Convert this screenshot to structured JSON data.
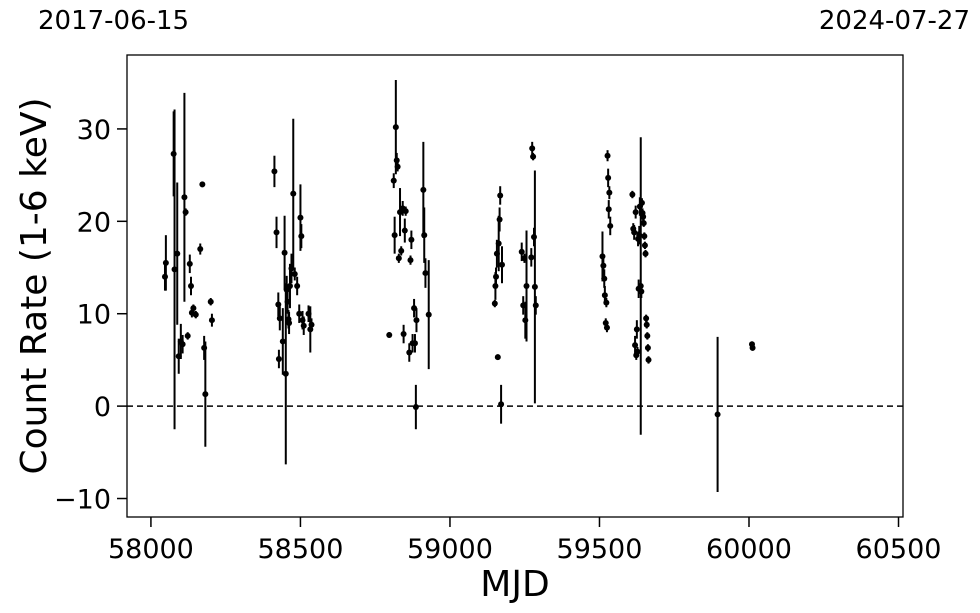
{
  "top_dates": {
    "left": "2017-06-15",
    "right": "2024-07-27"
  },
  "chart_data": {
    "type": "scatter",
    "title": "",
    "xlabel": "MJD",
    "ylabel": "Count Rate (1-6 keV)",
    "xlim": [
      57920,
      60515
    ],
    "ylim": [
      -12,
      38
    ],
    "xticks": [
      58000,
      58500,
      59000,
      59500,
      60000,
      60500
    ],
    "xtick_labels": [
      "58000",
      "58500",
      "59000",
      "59500",
      "60000",
      "60500"
    ],
    "yticks": [
      -10,
      0,
      10,
      20,
      30
    ],
    "ytick_labels": [
      "−10",
      "0",
      "10",
      "20",
      "30"
    ],
    "reference_line": {
      "y": 0,
      "style": "dashed",
      "color": "#000000"
    },
    "marker_color": "#000000",
    "grid": false,
    "legend": "none",
    "points": [
      {
        "x": 58047,
        "y": 14.0,
        "err": 1.5
      },
      {
        "x": 58050,
        "y": 15.5,
        "err": 3.0
      },
      {
        "x": 58076,
        "y": 27.3,
        "err": 4.6
      },
      {
        "x": 58079,
        "y": 14.8,
        "err": 17.3
      },
      {
        "x": 58088,
        "y": 16.5,
        "err": 7.7
      },
      {
        "x": 58093,
        "y": 5.4,
        "err": 1.9
      },
      {
        "x": 58100,
        "y": 7.0,
        "err": 1.9
      },
      {
        "x": 58106,
        "y": 6.7,
        "err": 1.0
      },
      {
        "x": 58112,
        "y": 22.6,
        "err": 11.3
      },
      {
        "x": 58116,
        "y": 21.0,
        "err": 0.4
      },
      {
        "x": 58123,
        "y": 7.6,
        "err": 0.4
      },
      {
        "x": 58130,
        "y": 15.4,
        "err": 1.0
      },
      {
        "x": 58134,
        "y": 13.0,
        "err": 1.0
      },
      {
        "x": 58137,
        "y": 10.1,
        "err": 0.5
      },
      {
        "x": 58142,
        "y": 10.6,
        "err": 0.4
      },
      {
        "x": 58150,
        "y": 9.9,
        "err": 0.4
      },
      {
        "x": 58165,
        "y": 17.0,
        "err": 0.6
      },
      {
        "x": 58172,
        "y": 24.0,
        "err": 0.3
      },
      {
        "x": 58178,
        "y": 6.3,
        "err": 1.3
      },
      {
        "x": 58182,
        "y": 1.3,
        "err": 5.7
      },
      {
        "x": 58200,
        "y": 11.3,
        "err": 0.4
      },
      {
        "x": 58204,
        "y": 9.3,
        "err": 0.7
      },
      {
        "x": 58413,
        "y": 25.4,
        "err": 1.7
      },
      {
        "x": 58420,
        "y": 18.8,
        "err": 1.7
      },
      {
        "x": 58426,
        "y": 11.0,
        "err": 1.3
      },
      {
        "x": 58428,
        "y": 5.1,
        "err": 1.0
      },
      {
        "x": 58431,
        "y": 9.5,
        "err": 1.3
      },
      {
        "x": 58441,
        "y": 7.0,
        "err": 3.6
      },
      {
        "x": 58447,
        "y": 16.6,
        "err": 4.0
      },
      {
        "x": 58451,
        "y": 3.5,
        "err": 9.8
      },
      {
        "x": 58454,
        "y": 12.6,
        "err": 1.5
      },
      {
        "x": 58457,
        "y": 11.3,
        "err": 1.3
      },
      {
        "x": 58460,
        "y": 9.4,
        "err": 1.0
      },
      {
        "x": 58462,
        "y": 9.0,
        "err": 1.2
      },
      {
        "x": 58465,
        "y": 13.0,
        "err": 2.4
      },
      {
        "x": 58470,
        "y": 14.9,
        "err": 1.6
      },
      {
        "x": 58476,
        "y": 23.0,
        "err": 8.1
      },
      {
        "x": 58481,
        "y": 14.3,
        "err": 0.7
      },
      {
        "x": 58489,
        "y": 13.0,
        "err": 1.0
      },
      {
        "x": 58496,
        "y": 10.0,
        "err": 1.0
      },
      {
        "x": 58500,
        "y": 20.4,
        "err": 3.6
      },
      {
        "x": 58503,
        "y": 18.4,
        "err": 1.3
      },
      {
        "x": 58507,
        "y": 9.3,
        "err": 1.0
      },
      {
        "x": 58511,
        "y": 8.7,
        "err": 1.0
      },
      {
        "x": 58527,
        "y": 10.0,
        "err": 0.9
      },
      {
        "x": 58533,
        "y": 8.3,
        "err": 2.5
      },
      {
        "x": 58537,
        "y": 8.8,
        "err": 0.7
      },
      {
        "x": 58797,
        "y": 7.7,
        "err": 0.3
      },
      {
        "x": 58812,
        "y": 24.4,
        "err": 0.8
      },
      {
        "x": 58815,
        "y": 18.5,
        "err": 2.0
      },
      {
        "x": 58819,
        "y": 30.2,
        "err": 5.1
      },
      {
        "x": 58822,
        "y": 26.6,
        "err": 0.8
      },
      {
        "x": 58825,
        "y": 25.9,
        "err": 0.5
      },
      {
        "x": 58829,
        "y": 16.0,
        "err": 0.5
      },
      {
        "x": 58833,
        "y": 21.0,
        "err": 2.6
      },
      {
        "x": 58837,
        "y": 16.8,
        "err": 0.5
      },
      {
        "x": 58842,
        "y": 21.4,
        "err": 0.8
      },
      {
        "x": 58845,
        "y": 7.8,
        "err": 1.0
      },
      {
        "x": 58849,
        "y": 19.0,
        "err": 1.3
      },
      {
        "x": 58852,
        "y": 21.1,
        "err": 0.5
      },
      {
        "x": 58864,
        "y": 5.8,
        "err": 1.0
      },
      {
        "x": 58868,
        "y": 15.8,
        "err": 0.5
      },
      {
        "x": 58871,
        "y": 18.0,
        "err": 1.0
      },
      {
        "x": 58875,
        "y": 6.8,
        "err": 1.0
      },
      {
        "x": 58880,
        "y": 10.6,
        "err": 1.0
      },
      {
        "x": 58883,
        "y": 6.8,
        "err": 1.0
      },
      {
        "x": 58886,
        "y": -0.1,
        "err": 2.4
      },
      {
        "x": 58888,
        "y": 9.3,
        "err": 1.3
      },
      {
        "x": 58911,
        "y": 23.4,
        "err": 5.2
      },
      {
        "x": 58914,
        "y": 18.5,
        "err": 3.0
      },
      {
        "x": 58918,
        "y": 14.4,
        "err": 1.6
      },
      {
        "x": 58929,
        "y": 9.9,
        "err": 5.9
      },
      {
        "x": 59150,
        "y": 11.1,
        "err": 0.4
      },
      {
        "x": 59152,
        "y": 13.0,
        "err": 1.5
      },
      {
        "x": 59154,
        "y": 14.0,
        "err": 1.0
      },
      {
        "x": 59157,
        "y": 16.5,
        "err": 1.5
      },
      {
        "x": 59160,
        "y": 5.3,
        "err": 0.3
      },
      {
        "x": 59163,
        "y": 17.6,
        "err": 3.0
      },
      {
        "x": 59166,
        "y": 20.2,
        "err": 1.3
      },
      {
        "x": 59168,
        "y": 22.8,
        "err": 1.0
      },
      {
        "x": 59171,
        "y": 0.2,
        "err": 2.1
      },
      {
        "x": 59174,
        "y": 15.3,
        "err": 2.0
      },
      {
        "x": 59240,
        "y": 16.7,
        "err": 1.0
      },
      {
        "x": 59245,
        "y": 10.9,
        "err": 1.0
      },
      {
        "x": 59249,
        "y": 16.0,
        "err": 0.5
      },
      {
        "x": 59252,
        "y": 9.3,
        "err": 2.0
      },
      {
        "x": 59256,
        "y": 13.0,
        "err": 6.0
      },
      {
        "x": 59272,
        "y": 16.1,
        "err": 1.0
      },
      {
        "x": 59275,
        "y": 27.9,
        "err": 0.7
      },
      {
        "x": 59278,
        "y": 27.0,
        "err": 0.4
      },
      {
        "x": 59281,
        "y": 18.3,
        "err": 1.0
      },
      {
        "x": 59284,
        "y": 12.9,
        "err": 12.6
      },
      {
        "x": 59287,
        "y": 10.9,
        "err": 1.0
      },
      {
        "x": 59510,
        "y": 16.2,
        "err": 2.7
      },
      {
        "x": 59513,
        "y": 15.2,
        "err": 1.0
      },
      {
        "x": 59516,
        "y": 13.8,
        "err": 1.0
      },
      {
        "x": 59518,
        "y": 12.0,
        "err": 1.0
      },
      {
        "x": 59521,
        "y": 9.0,
        "err": 0.5
      },
      {
        "x": 59523,
        "y": 11.2,
        "err": 0.5
      },
      {
        "x": 59525,
        "y": 8.5,
        "err": 0.5
      },
      {
        "x": 59527,
        "y": 27.1,
        "err": 0.6
      },
      {
        "x": 59529,
        "y": 24.7,
        "err": 1.0
      },
      {
        "x": 59531,
        "y": 21.3,
        "err": 1.0
      },
      {
        "x": 59533,
        "y": 23.1,
        "err": 0.7
      },
      {
        "x": 59536,
        "y": 19.5,
        "err": 1.0
      },
      {
        "x": 59610,
        "y": 22.9,
        "err": 0.4
      },
      {
        "x": 59613,
        "y": 19.2,
        "err": 0.6
      },
      {
        "x": 59616,
        "y": 18.8,
        "err": 0.8
      },
      {
        "x": 59619,
        "y": 6.6,
        "err": 1.0
      },
      {
        "x": 59621,
        "y": 21.0,
        "err": 0.7
      },
      {
        "x": 59623,
        "y": 5.5,
        "err": 0.5
      },
      {
        "x": 59625,
        "y": 8.3,
        "err": 1.0
      },
      {
        "x": 59627,
        "y": 5.9,
        "err": 0.5
      },
      {
        "x": 59629,
        "y": 18.1,
        "err": 0.8
      },
      {
        "x": 59631,
        "y": 12.7,
        "err": 1.0
      },
      {
        "x": 59633,
        "y": 18.5,
        "err": 1.0
      },
      {
        "x": 59635,
        "y": 21.6,
        "err": 1.0
      },
      {
        "x": 59638,
        "y": 13.0,
        "err": 16.1
      },
      {
        "x": 59640,
        "y": 12.4,
        "err": 0.7
      },
      {
        "x": 59642,
        "y": 22.0,
        "err": 0.5
      },
      {
        "x": 59644,
        "y": 20.9,
        "err": 0.5
      },
      {
        "x": 59646,
        "y": 20.5,
        "err": 0.5
      },
      {
        "x": 59648,
        "y": 19.8,
        "err": 0.4
      },
      {
        "x": 59650,
        "y": 18.4,
        "err": 0.4
      },
      {
        "x": 59652,
        "y": 17.4,
        "err": 0.4
      },
      {
        "x": 59654,
        "y": 16.5,
        "err": 0.4
      },
      {
        "x": 59656,
        "y": 9.5,
        "err": 0.4
      },
      {
        "x": 59658,
        "y": 8.8,
        "err": 0.4
      },
      {
        "x": 59660,
        "y": 7.6,
        "err": 0.4
      },
      {
        "x": 59662,
        "y": 6.3,
        "err": 0.4
      },
      {
        "x": 59664,
        "y": 5.0,
        "err": 0.4
      },
      {
        "x": 59895,
        "y": -0.9,
        "err": 8.4
      },
      {
        "x": 60010,
        "y": 6.7,
        "err": 0.3
      },
      {
        "x": 60012,
        "y": 6.3,
        "err": 0.3
      }
    ]
  }
}
